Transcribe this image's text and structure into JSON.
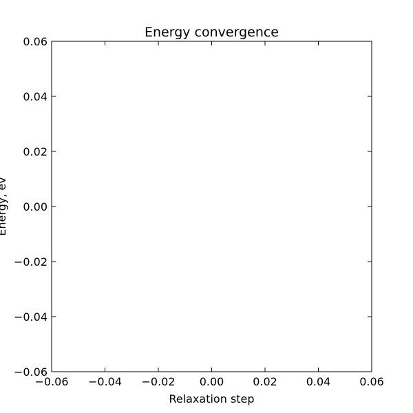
{
  "chart_data": {
    "type": "line",
    "title": "Energy convergence",
    "xlabel": "Relaxation step",
    "ylabel": "Energy, ev",
    "xlim": [
      -0.06,
      0.06
    ],
    "ylim": [
      -0.06,
      0.06
    ],
    "xticks": [
      "−0.06",
      "−0.04",
      "−0.02",
      "0.00",
      "0.02",
      "0.04",
      "0.06"
    ],
    "yticks": [
      "−0.06",
      "−0.04",
      "−0.02",
      "0.00",
      "0.02",
      "0.04",
      "0.06"
    ],
    "grid": false,
    "series": []
  }
}
